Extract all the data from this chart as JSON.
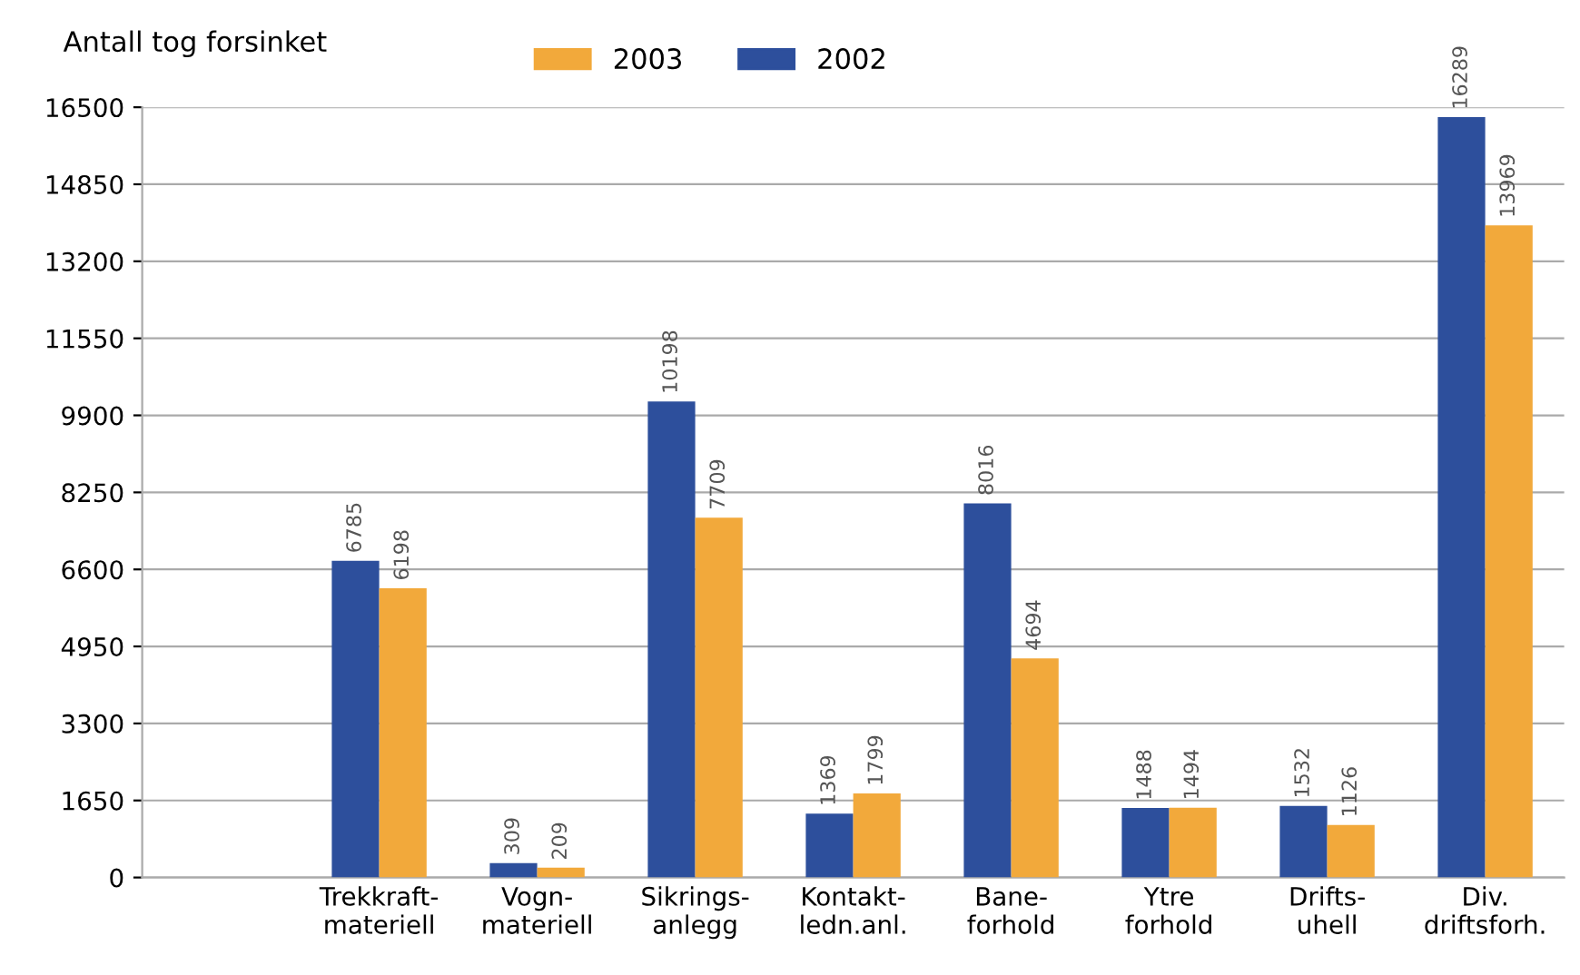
{
  "chart_data": {
    "type": "bar",
    "ylabel": "Antall tog forsinket",
    "categories": [
      null,
      "Trekkraft-\nmateriell",
      "Vogn-\nmateriell",
      "Sikrings-\nanlegg",
      "Kontakt-\nledn.anl.",
      "Bane-\nforhold",
      "Ytre\nforhold",
      "Drifts-\nuhell",
      "Div.\ndriftsforh."
    ],
    "series": [
      {
        "name": "2002",
        "color": "#2d4f9c",
        "values": [
          null,
          6785,
          309,
          10198,
          1369,
          8016,
          1488,
          1532,
          16289
        ]
      },
      {
        "name": "2003",
        "color": "#f2a93b",
        "values": [
          null,
          6198,
          209,
          7709,
          1799,
          4694,
          1494,
          1126,
          13969
        ]
      }
    ],
    "ylim": [
      0,
      16500
    ],
    "yticks": [
      0,
      1650,
      3300,
      4950,
      6600,
      8250,
      9900,
      11550,
      13200,
      14850,
      16500
    ],
    "grid": "y",
    "legend": "top",
    "data_labels": true
  }
}
